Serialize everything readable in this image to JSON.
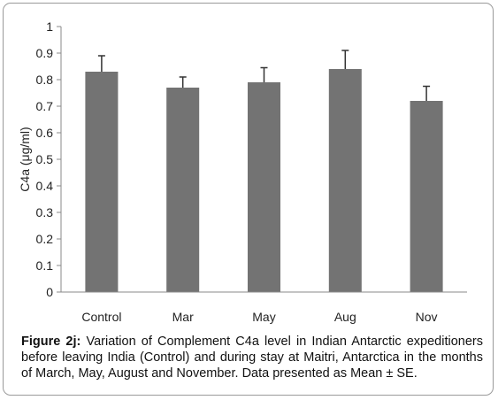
{
  "chart_data": {
    "type": "bar",
    "categories": [
      "Control",
      "Mar",
      "May",
      "Aug",
      "Nov"
    ],
    "values": [
      0.83,
      0.77,
      0.79,
      0.84,
      0.72
    ],
    "errors": [
      0.06,
      0.04,
      0.055,
      0.07,
      0.055
    ],
    "ylabel": "C4a (μg/ml)",
    "ylim": [
      0,
      1
    ],
    "yticks": [
      0,
      0.1,
      0.2,
      0.3,
      0.4,
      0.5,
      0.6,
      0.7,
      0.8,
      0.9,
      1
    ],
    "ytick_labels": [
      "0",
      "0.1",
      "0.2",
      "0.3",
      "0.4",
      "0.5",
      "0.6",
      "0.7",
      "0.8",
      "0.9",
      "1"
    ],
    "grid": false,
    "bar_color": "#737373"
  },
  "caption": {
    "label": "Figure 2j:",
    "text": " Variation of Complement C4a level in Indian Antarctic expeditioners before leaving India (Control) and during stay at Maitri, Antarctica in the months of March, May, August and November. Data presented as Mean ± SE."
  }
}
